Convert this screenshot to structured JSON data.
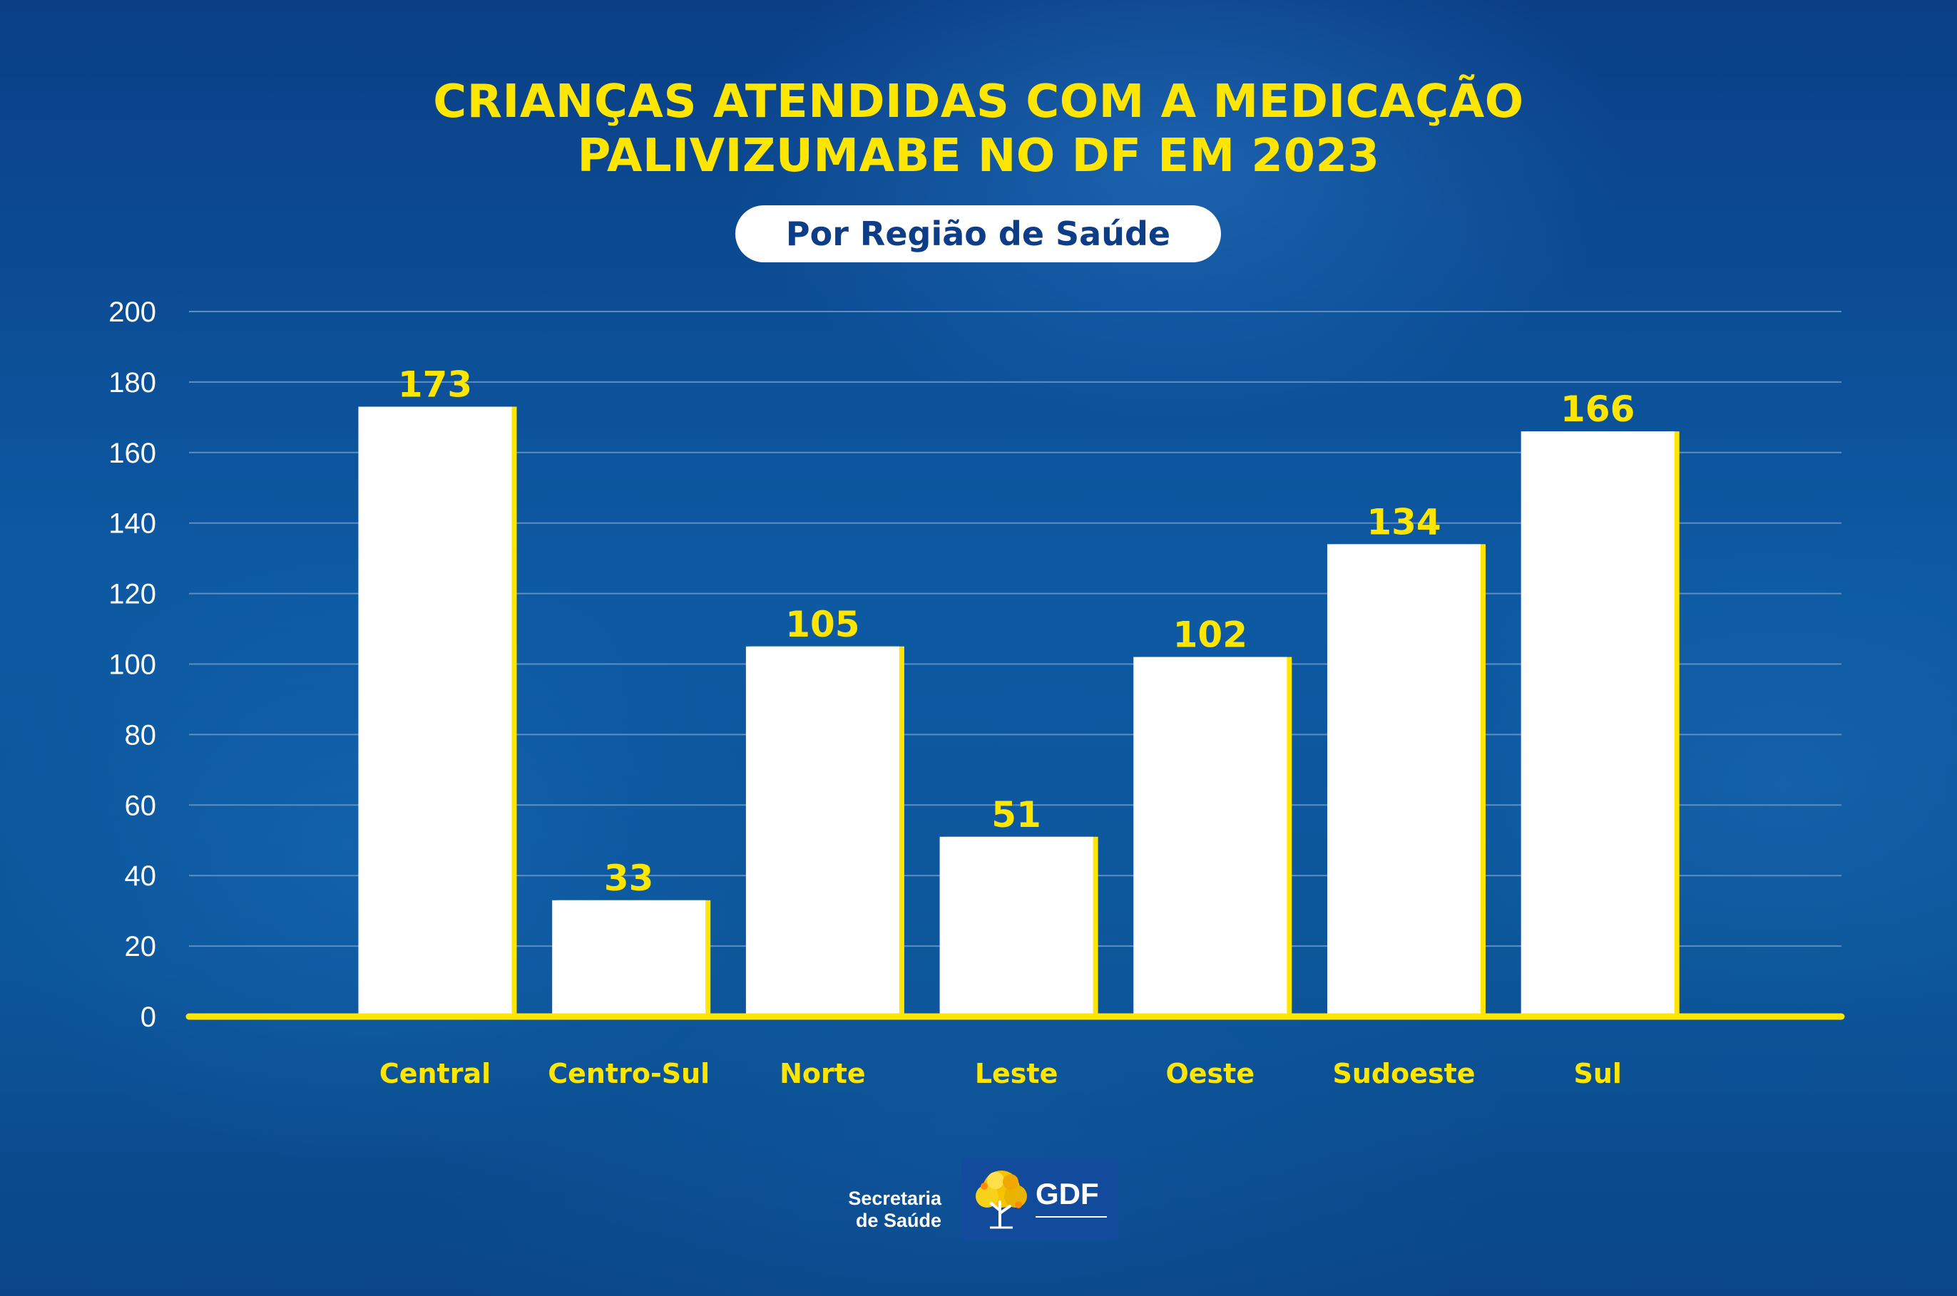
{
  "title_lines": [
    "CRIANÇAS ATENDIDAS COM A MEDICAÇÃO",
    "PALIVIZUMABE NO DF EM 2023"
  ],
  "subtitle": "Por Região de Saúde",
  "colors": {
    "accent": "#ffe600",
    "bar": "#ffffff",
    "bar_edge": "#ffe600",
    "grid": "#5b8fc4",
    "background": "#0d5aa3",
    "pill_text": "#0c3d86"
  },
  "chart_data": {
    "type": "bar",
    "title": "CRIANÇAS ATENDIDAS COM A MEDICAÇÃO PALIVIZUMABE NO DF EM 2023",
    "subtitle": "Por Região de Saúde",
    "categories": [
      "Central",
      "Centro-Sul",
      "Norte",
      "Leste",
      "Oeste",
      "Sudoeste",
      "Sul"
    ],
    "values": [
      173,
      33,
      105,
      51,
      102,
      134,
      166
    ],
    "data_labels": [
      "173",
      "33",
      "105",
      "51",
      "102",
      "134",
      "166"
    ],
    "ylim": [
      0,
      200
    ],
    "yticks": [
      0,
      20,
      40,
      60,
      80,
      100,
      120,
      140,
      160,
      180,
      200
    ],
    "grid": true,
    "legend": "none"
  },
  "logo": {
    "secretaria_line1": "Secretaria",
    "secretaria_line2": "de Saúde",
    "badge_text": "GDF",
    "tree_icon": "ipe-tree-icon"
  }
}
